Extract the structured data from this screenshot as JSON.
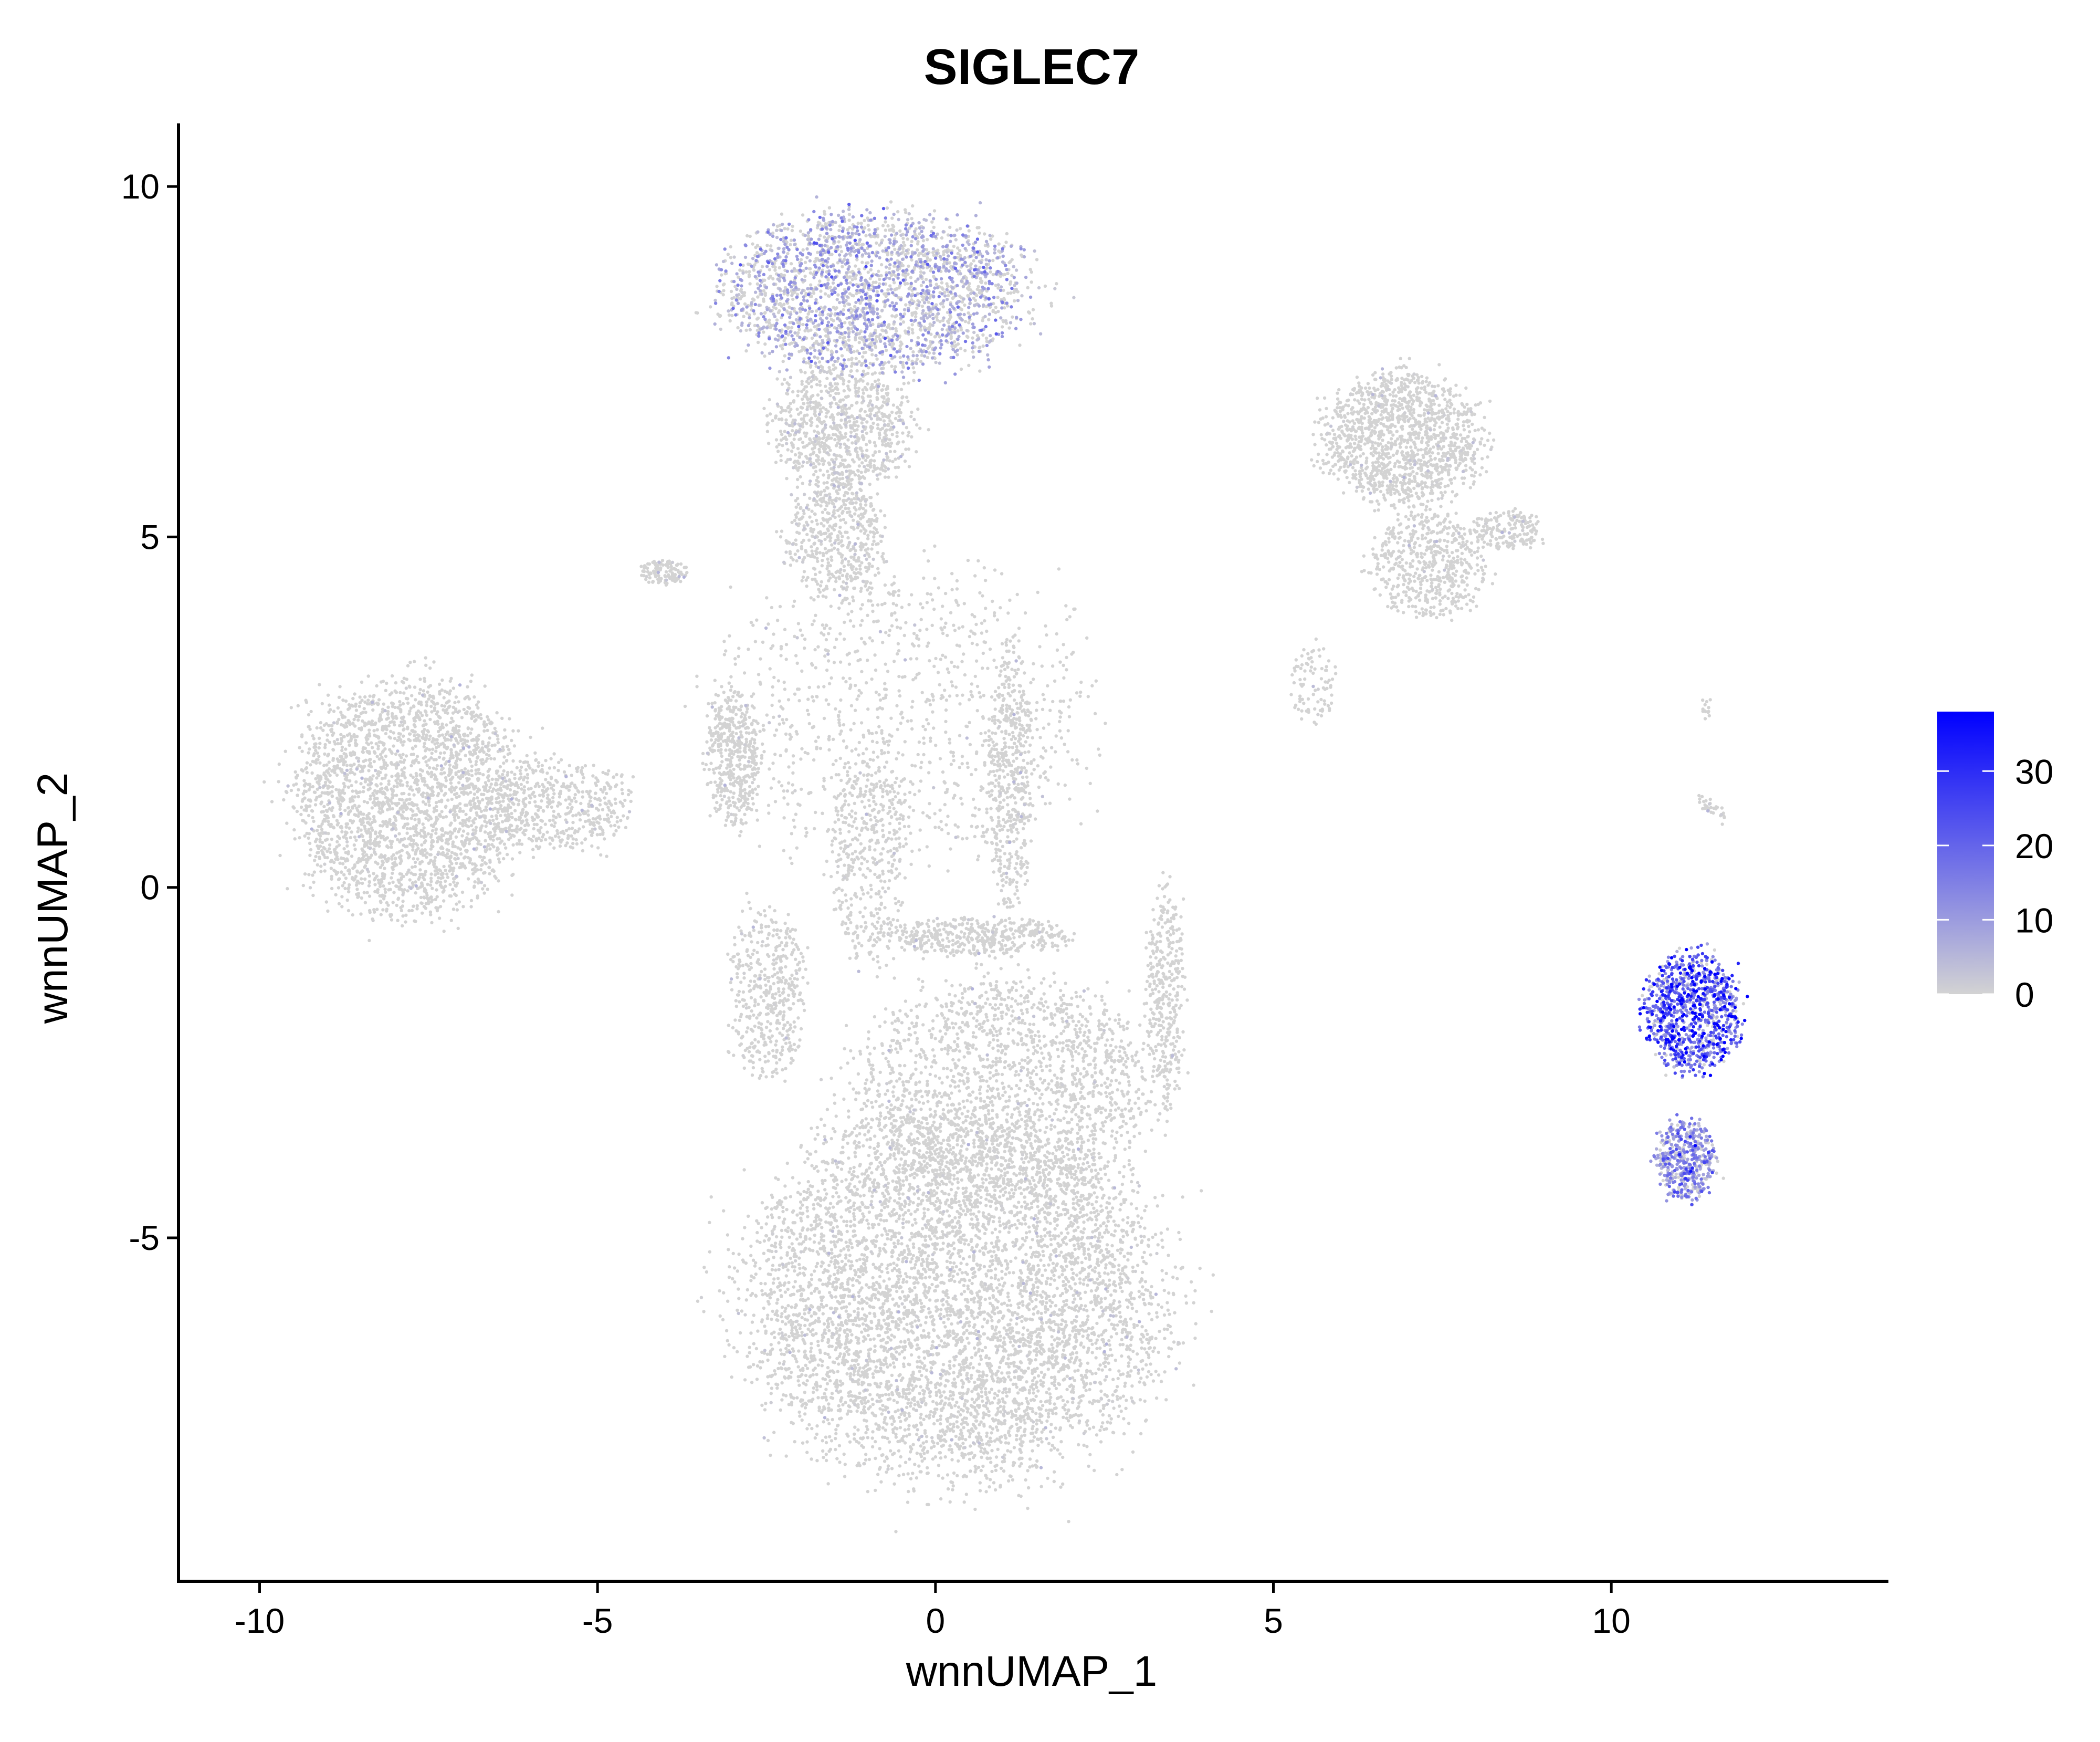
{
  "chart_data": {
    "type": "scatter",
    "title": "SIGLEC7",
    "xlabel": "wnnUMAP_1",
    "ylabel": "wnnUMAP_2",
    "xlim": [
      -11.2,
      14.1
    ],
    "ylim": [
      -9.9,
      10.9
    ],
    "xticks": [
      -10,
      -5,
      0,
      5,
      10
    ],
    "xtick_labels": [
      "-10",
      "-5",
      "0",
      "5",
      "10"
    ],
    "yticks": [
      -5,
      0,
      5,
      10
    ],
    "ytick_labels": [
      "-5",
      "0",
      "5",
      "10"
    ],
    "grid": false,
    "legend_position": "right",
    "color_scale": {
      "name": "expression",
      "low_color": "#d3d3d3",
      "high_color": "#0000ff",
      "min": 0,
      "max": 38,
      "ticks": [
        0,
        10,
        20,
        30
      ],
      "tick_labels": [
        "0",
        "10",
        "20",
        "30"
      ]
    },
    "clusters": [
      {
        "cx": 0.3,
        "cy": -5.8,
        "rx": 3.3,
        "ry": 2.8,
        "n": 6000,
        "expr_mean": 0.4
      },
      {
        "cx": 1.0,
        "cy": -2.8,
        "rx": 2.4,
        "ry": 1.6,
        "n": 1800,
        "expr_mean": 0.3
      },
      {
        "cx": -7.8,
        "cy": 1.3,
        "rx": 1.8,
        "ry": 1.8,
        "n": 2600,
        "expr_mean": 0.3
      },
      {
        "cx": -5.6,
        "cy": 1.2,
        "rx": 1.2,
        "ry": 0.7,
        "n": 500,
        "expr_mean": 0.2
      },
      {
        "cx": -3.0,
        "cy": 1.8,
        "rx": 0.45,
        "ry": 1.0,
        "n": 450,
        "expr_mean": 0.3
      },
      {
        "cx": -0.9,
        "cy": 8.5,
        "rx": 2.4,
        "ry": 1.2,
        "n": 2500,
        "expr_mean": 6.0
      },
      {
        "cx": -1.4,
        "cy": 6.6,
        "rx": 1.1,
        "ry": 1.0,
        "n": 900,
        "expr_mean": 1.5
      },
      {
        "cx": -1.5,
        "cy": 5.0,
        "rx": 0.8,
        "ry": 0.9,
        "n": 500,
        "expr_mean": 1.0
      },
      {
        "cx": -4.0,
        "cy": 4.5,
        "rx": 0.35,
        "ry": 0.2,
        "n": 120,
        "expr_mean": 0.2
      },
      {
        "cx": 6.9,
        "cy": 6.4,
        "rx": 1.3,
        "ry": 1.0,
        "n": 1400,
        "expr_mean": 0.4
      },
      {
        "cx": 7.3,
        "cy": 4.6,
        "rx": 0.9,
        "ry": 0.8,
        "n": 550,
        "expr_mean": 0.4
      },
      {
        "cx": 8.5,
        "cy": 5.1,
        "rx": 0.6,
        "ry": 0.3,
        "n": 180,
        "expr_mean": 0.4
      },
      {
        "cx": 5.6,
        "cy": 2.9,
        "rx": 0.35,
        "ry": 0.6,
        "n": 90,
        "expr_mean": 0.3
      },
      {
        "cx": 1.1,
        "cy": 1.5,
        "rx": 0.35,
        "ry": 2.0,
        "n": 450,
        "expr_mean": 0.3
      },
      {
        "cx": -1.0,
        "cy": 0.5,
        "rx": 0.6,
        "ry": 1.8,
        "n": 400,
        "expr_mean": 0.3
      },
      {
        "cx": 0.6,
        "cy": -0.7,
        "rx": 1.5,
        "ry": 0.3,
        "n": 450,
        "expr_mean": 0.3
      },
      {
        "cx": 3.4,
        "cy": -1.5,
        "rx": 0.3,
        "ry": 1.7,
        "n": 350,
        "expr_mean": 0.3
      },
      {
        "cx": -2.5,
        "cy": -1.5,
        "rx": 0.6,
        "ry": 1.3,
        "n": 450,
        "expr_mean": 0.3
      },
      {
        "cx": 11.2,
        "cy": -1.8,
        "rx": 0.75,
        "ry": 0.9,
        "n": 1000,
        "expr_mean": 16.0
      },
      {
        "cx": 11.1,
        "cy": -3.9,
        "rx": 0.45,
        "ry": 0.6,
        "n": 500,
        "expr_mean": 9.0
      },
      {
        "cx": 11.4,
        "cy": 1.2,
        "rx": 0.15,
        "ry": 0.15,
        "n": 20,
        "expr_mean": 0.5
      },
      {
        "cx": 11.4,
        "cy": 2.6,
        "rx": 0.08,
        "ry": 0.25,
        "n": 15,
        "expr_mean": 0.5
      },
      {
        "cx": 11.6,
        "cy": 1.0,
        "rx": 0.1,
        "ry": 0.2,
        "n": 12,
        "expr_mean": 0.5
      },
      {
        "cx": -0.5,
        "cy": 2.5,
        "rx": 3.0,
        "ry": 2.3,
        "n": 1000,
        "expr_mean": 0.2
      }
    ]
  }
}
